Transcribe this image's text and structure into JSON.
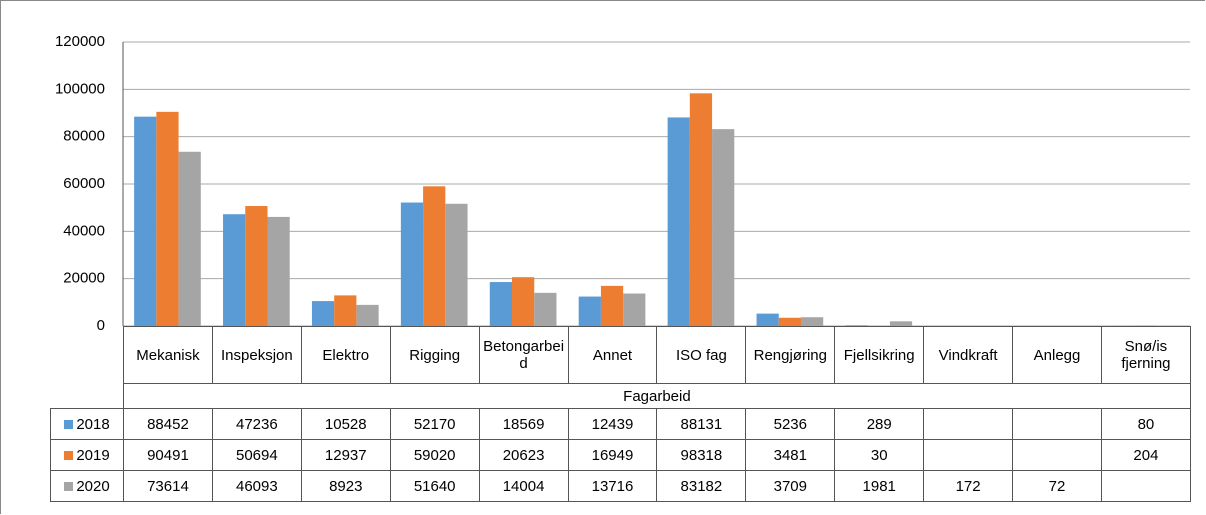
{
  "chart_data": {
    "type": "bar",
    "x_label": "Fagarbeid",
    "categories": [
      "Mekanisk",
      "Inspeksjon",
      "Elektro",
      "Rigging",
      "Betongarbeid",
      "Annet",
      "ISO fag",
      "Rengjøring",
      "Fjellsikring",
      "Vindkraft",
      "Anlegg",
      "Snø/is fjerning"
    ],
    "series": [
      {
        "name": "2018",
        "color": "#5b9bd5",
        "values": [
          88452,
          47236,
          10528,
          52170,
          18569,
          12439,
          88131,
          5236,
          289,
          null,
          null,
          80
        ]
      },
      {
        "name": "2019",
        "color": "#ed7d31",
        "values": [
          90491,
          50694,
          12937,
          59020,
          20623,
          16949,
          98318,
          3481,
          30,
          null,
          null,
          204
        ]
      },
      {
        "name": "2020",
        "color": "#a5a5a5",
        "values": [
          73614,
          46093,
          8923,
          51640,
          14004,
          13716,
          83182,
          3709,
          1981,
          172,
          72,
          null
        ]
      }
    ],
    "ylim": [
      0,
      120000
    ],
    "yticks": [
      0,
      20000,
      40000,
      60000,
      80000,
      100000,
      120000
    ],
    "grid": true
  }
}
